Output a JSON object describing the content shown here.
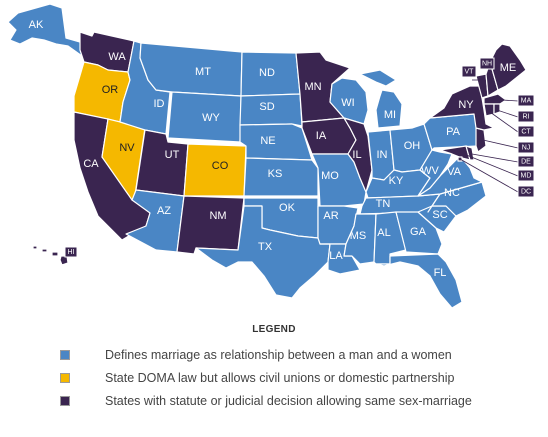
{
  "colors": {
    "man_woman": "#4a86c5",
    "civil_unions": "#f5b800",
    "same_sex": "#3a2550"
  },
  "states": [
    {
      "abbr": "AK",
      "cat": "man_woman"
    },
    {
      "abbr": "HI",
      "cat": "same_sex"
    },
    {
      "abbr": "WA",
      "cat": "same_sex"
    },
    {
      "abbr": "OR",
      "cat": "civil_unions"
    },
    {
      "abbr": "CA",
      "cat": "same_sex"
    },
    {
      "abbr": "NV",
      "cat": "civil_unions"
    },
    {
      "abbr": "ID",
      "cat": "man_woman"
    },
    {
      "abbr": "MT",
      "cat": "man_woman"
    },
    {
      "abbr": "WY",
      "cat": "man_woman"
    },
    {
      "abbr": "UT",
      "cat": "same_sex"
    },
    {
      "abbr": "CO",
      "cat": "civil_unions"
    },
    {
      "abbr": "AZ",
      "cat": "man_woman"
    },
    {
      "abbr": "NM",
      "cat": "same_sex"
    },
    {
      "abbr": "ND",
      "cat": "man_woman"
    },
    {
      "abbr": "SD",
      "cat": "man_woman"
    },
    {
      "abbr": "NE",
      "cat": "man_woman"
    },
    {
      "abbr": "KS",
      "cat": "man_woman"
    },
    {
      "abbr": "OK",
      "cat": "man_woman"
    },
    {
      "abbr": "TX",
      "cat": "man_woman"
    },
    {
      "abbr": "MN",
      "cat": "same_sex"
    },
    {
      "abbr": "IA",
      "cat": "same_sex"
    },
    {
      "abbr": "MO",
      "cat": "man_woman"
    },
    {
      "abbr": "AR",
      "cat": "man_woman"
    },
    {
      "abbr": "LA",
      "cat": "man_woman"
    },
    {
      "abbr": "WI",
      "cat": "man_woman"
    },
    {
      "abbr": "IL",
      "cat": "same_sex"
    },
    {
      "abbr": "MI",
      "cat": "man_woman"
    },
    {
      "abbr": "IN",
      "cat": "man_woman"
    },
    {
      "abbr": "OH",
      "cat": "man_woman"
    },
    {
      "abbr": "KY",
      "cat": "man_woman"
    },
    {
      "abbr": "TN",
      "cat": "man_woman"
    },
    {
      "abbr": "MS",
      "cat": "man_woman"
    },
    {
      "abbr": "AL",
      "cat": "man_woman"
    },
    {
      "abbr": "GA",
      "cat": "man_woman"
    },
    {
      "abbr": "FL",
      "cat": "man_woman"
    },
    {
      "abbr": "SC",
      "cat": "man_woman"
    },
    {
      "abbr": "NC",
      "cat": "man_woman"
    },
    {
      "abbr": "VA",
      "cat": "man_woman"
    },
    {
      "abbr": "WV",
      "cat": "man_woman"
    },
    {
      "abbr": "PA",
      "cat": "man_woman"
    },
    {
      "abbr": "NY",
      "cat": "same_sex"
    },
    {
      "abbr": "VT",
      "cat": "same_sex"
    },
    {
      "abbr": "NH",
      "cat": "same_sex"
    },
    {
      "abbr": "ME",
      "cat": "same_sex"
    },
    {
      "abbr": "MA",
      "cat": "same_sex"
    },
    {
      "abbr": "RI",
      "cat": "same_sex"
    },
    {
      "abbr": "CT",
      "cat": "same_sex"
    },
    {
      "abbr": "NJ",
      "cat": "same_sex"
    },
    {
      "abbr": "DE",
      "cat": "same_sex"
    },
    {
      "abbr": "MD",
      "cat": "same_sex"
    },
    {
      "abbr": "DC",
      "cat": "same_sex"
    }
  ],
  "legend": {
    "title": "LEGEND",
    "items": [
      {
        "cat": "man_woman",
        "label": "Defines marriage as relationship between a man and a women"
      },
      {
        "cat": "civil_unions",
        "label": "State DOMA law but allows civil unions or domestic partnership"
      },
      {
        "cat": "same_sex",
        "label": "States with statute or judicial decision allowing same sex-marriage"
      }
    ]
  }
}
